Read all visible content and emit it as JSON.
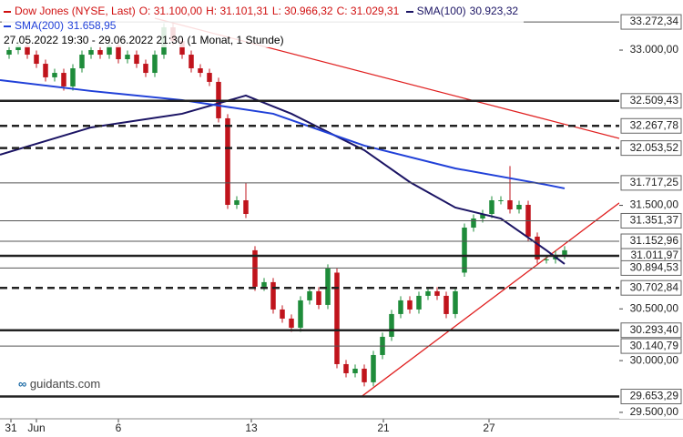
{
  "chart_data": {
    "type": "candlestick",
    "title": "Dow Jones (NYSE, Last)",
    "quote": [
      "O: 31.100,00",
      "H: 31.101,31",
      "L: 30.966,32",
      "C: 31.029,31"
    ],
    "period": "27.05.2022 19:30 - 29.06.2022 21:30",
    "interval": "(1 Monat, 1 Stunde)",
    "watermark": "guidants.com",
    "title_color": "#d01010",
    "up_color": "#1e8c3a",
    "down_color": "#c0141c",
    "xlim": [
      -1,
      67
    ],
    "ylim": [
      29438,
      33484
    ],
    "xticks": [
      {
        "value": 0.2,
        "label": "31"
      },
      {
        "value": 3,
        "label": "Jun"
      },
      {
        "value": 12,
        "label": "6"
      },
      {
        "value": 26.6,
        "label": "13"
      },
      {
        "value": 41.1,
        "label": "21"
      },
      {
        "value": 52.7,
        "label": "27"
      }
    ],
    "yticks": [
      {
        "value": 33000,
        "label": "33.000,00"
      },
      {
        "value": 31500,
        "label": "31.500,00"
      },
      {
        "value": 30500,
        "label": "30.500,00"
      },
      {
        "value": 30000,
        "label": "30.000,00"
      },
      {
        "value": 29500,
        "label": "29.500,00"
      }
    ],
    "levels": [
      {
        "value": 33272.34,
        "label": "33.272,34",
        "style": "thin"
      },
      {
        "value": 32509.43,
        "label": "32.509,43",
        "style": "thick"
      },
      {
        "value": 32267.78,
        "label": "32.267,78",
        "style": "dashed"
      },
      {
        "value": 32053.52,
        "label": "32.053,52",
        "style": "dashed"
      },
      {
        "value": 31717.25,
        "label": "31.717,25",
        "style": "thin"
      },
      {
        "value": 31351.37,
        "label": "31.351,37",
        "style": "thin"
      },
      {
        "value": 31152.96,
        "label": "31.152,96",
        "style": "thin"
      },
      {
        "value": 31011.97,
        "label": "31.011,97",
        "style": "thick"
      },
      {
        "value": 30894.53,
        "label": "30.894,53",
        "style": "thin"
      },
      {
        "value": 30702.84,
        "label": "30.702,84",
        "style": "dashed"
      },
      {
        "value": 30293.4,
        "label": "30.293,40",
        "style": "thick"
      },
      {
        "value": 30140.79,
        "label": "30.140,79",
        "style": "thin"
      },
      {
        "value": 29653.29,
        "label": "29.653,29",
        "style": "thick"
      }
    ],
    "candles": {
      "x": [
        0,
        1,
        2,
        3,
        4,
        5,
        6,
        7,
        8,
        9,
        10,
        11,
        12,
        13,
        14,
        15,
        16,
        17,
        18,
        19,
        20,
        21,
        22,
        23,
        24,
        25,
        26,
        27,
        28,
        29,
        30,
        31,
        32,
        33,
        34,
        35,
        36,
        37,
        38,
        39,
        40,
        41,
        42,
        43,
        44,
        45,
        46,
        47,
        48,
        49,
        50,
        51,
        52,
        53,
        54,
        55,
        56,
        57,
        58,
        59,
        60,
        61
      ],
      "open": [
        32956,
        33000,
        33044,
        32956,
        32868,
        32737,
        32780,
        32649,
        32824,
        32956,
        33000,
        32956,
        33044,
        32912,
        32956,
        32868,
        32780,
        32956,
        33220,
        33088,
        32956,
        32824,
        32780,
        32693,
        32341,
        31505,
        31549,
        31066,
        30714,
        30758,
        30494,
        30406,
        30318,
        30582,
        30670,
        30538,
        30850,
        29966,
        29878,
        29922,
        29791,
        30054,
        30230,
        30450,
        30582,
        30494,
        30626,
        30670,
        30626,
        30450,
        30850,
        31285,
        31373,
        31417,
        31549,
        31549,
        31461,
        31505,
        31198,
        30978,
        30978,
        31022
      ],
      "high": [
        33040,
        33084,
        33084,
        32996,
        32908,
        32820,
        32820,
        32864,
        32996,
        33040,
        33040,
        33084,
        33084,
        32996,
        32996,
        32908,
        32996,
        33260,
        33260,
        33128,
        32996,
        32864,
        32820,
        32733,
        32381,
        31589,
        31720,
        31106,
        30798,
        30798,
        30534,
        30446,
        30622,
        30710,
        30710,
        30930,
        30890,
        30006,
        29962,
        29962,
        30094,
        30270,
        30490,
        30622,
        30622,
        30666,
        30710,
        30710,
        30666,
        30710,
        31325,
        31413,
        31457,
        31589,
        31589,
        31880,
        31545,
        31545,
        31238,
        31018,
        31062,
        31106
      ],
      "low": [
        32916,
        32960,
        32916,
        32828,
        32697,
        32697,
        32609,
        32609,
        32784,
        32916,
        32916,
        32916,
        32872,
        32872,
        32828,
        32740,
        32740,
        32916,
        33048,
        32916,
        32784,
        32740,
        32653,
        32301,
        31465,
        31465,
        31377,
        30674,
        30674,
        30454,
        30366,
        30278,
        30278,
        30542,
        30498,
        30498,
        29926,
        29838,
        29838,
        29751,
        29751,
        30014,
        30190,
        30410,
        30454,
        30454,
        30586,
        30586,
        30410,
        30410,
        30810,
        31245,
        31333,
        31377,
        31509,
        31421,
        31421,
        31158,
        30938,
        30938,
        30938,
        30982
      ],
      "close": [
        33000,
        33044,
        32956,
        32868,
        32737,
        32780,
        32649,
        32824,
        32956,
        33000,
        32956,
        33044,
        32912,
        32956,
        32868,
        32780,
        32956,
        33220,
        33088,
        32956,
        32824,
        32780,
        32693,
        32341,
        31505,
        31549,
        31417,
        30714,
        30758,
        30494,
        30406,
        30318,
        30582,
        30670,
        30538,
        30890,
        29966,
        29878,
        29922,
        29791,
        30054,
        30230,
        30450,
        30582,
        30494,
        30626,
        30670,
        30626,
        30450,
        30670,
        31285,
        31373,
        31417,
        31549,
        31549,
        31461,
        31505,
        31198,
        30978,
        30978,
        31022,
        31066
      ]
    },
    "series": [
      {
        "name": "SMA(100)",
        "value_label": "30.923,32",
        "color": "#1b1464",
        "x": [
          -1,
          9,
          19,
          26,
          31,
          39,
          44,
          49,
          54,
          59,
          61
        ],
        "values": [
          31989,
          32253,
          32385,
          32561,
          32385,
          32033,
          31725,
          31479,
          31373,
          31066,
          30934
        ]
      },
      {
        "name": "SMA(200)",
        "value_label": "31.658,95",
        "color": "#2040d8",
        "x": [
          -1,
          9,
          19,
          29,
          39,
          49,
          59,
          61
        ],
        "values": [
          32710,
          32605,
          32517,
          32385,
          32077,
          31857,
          31699,
          31664
        ]
      }
    ],
    "trendlines": [
      {
        "color": "#e02020",
        "x": [
          16,
          67
        ],
        "values": [
          33308,
          32147
        ]
      },
      {
        "color": "#e02020",
        "x": [
          38.7,
          67
        ],
        "values": [
          29653,
          31523
        ]
      }
    ]
  }
}
